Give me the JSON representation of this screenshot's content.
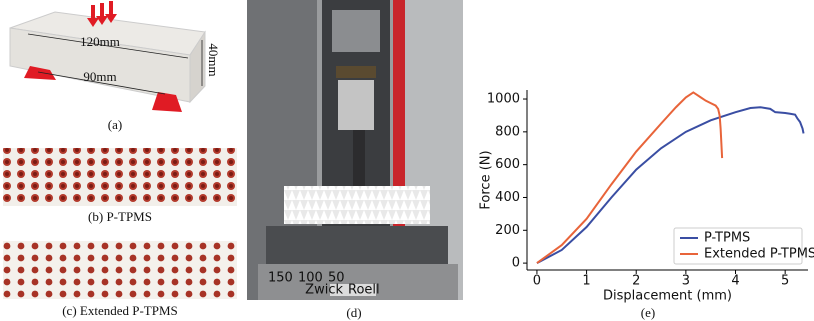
{
  "panel_a": {
    "length_label": "120mm",
    "height_label": "40mm",
    "span_label": "90mm",
    "caption": "(a)"
  },
  "panel_b": {
    "caption": "(b) P-TPMS"
  },
  "panel_c": {
    "caption": "(c) Extended P-TPMS"
  },
  "panel_d": {
    "caption": "(d)",
    "brand_left": "Zwick",
    "brand_right": "Roell",
    "ruler_labels": [
      "150",
      "100",
      "50"
    ]
  },
  "panel_e": {
    "caption": "(e)"
  },
  "chart_data": {
    "type": "line",
    "xlabel": "Displacement (mm)",
    "ylabel": "Force (N)",
    "xlim": [
      -0.2,
      5.46
    ],
    "ylim": [
      -42,
      1055
    ],
    "xticks": [
      0,
      1,
      2,
      3,
      4,
      5
    ],
    "yticks": [
      0,
      200,
      400,
      600,
      800,
      1000
    ],
    "legend": "lower right",
    "series": [
      {
        "name": "P-TPMS",
        "color": "#3a4ea3",
        "x": [
          0,
          0.5,
          1,
          1.5,
          2,
          2.5,
          3,
          3.5,
          4,
          4.3,
          4.5,
          4.7,
          4.8,
          5,
          5.1,
          5.2,
          5.25,
          5.3,
          5.35,
          5.37
        ],
        "values": [
          0,
          80,
          220,
          400,
          570,
          700,
          800,
          870,
          920,
          945,
          950,
          940,
          920,
          915,
          910,
          905,
          880,
          860,
          820,
          790
        ]
      },
      {
        "name": "Extended P-TPMS",
        "color": "#e8643a",
        "x": [
          0,
          0.5,
          1,
          1.5,
          2,
          2.5,
          2.8,
          3,
          3.15,
          3.2,
          3.3,
          3.4,
          3.5,
          3.6,
          3.65,
          3.68,
          3.7,
          3.72,
          3.73
        ],
        "values": [
          0,
          110,
          270,
          480,
          680,
          850,
          950,
          1010,
          1040,
          1030,
          1010,
          990,
          975,
          960,
          940,
          900,
          820,
          700,
          640
        ]
      }
    ]
  }
}
